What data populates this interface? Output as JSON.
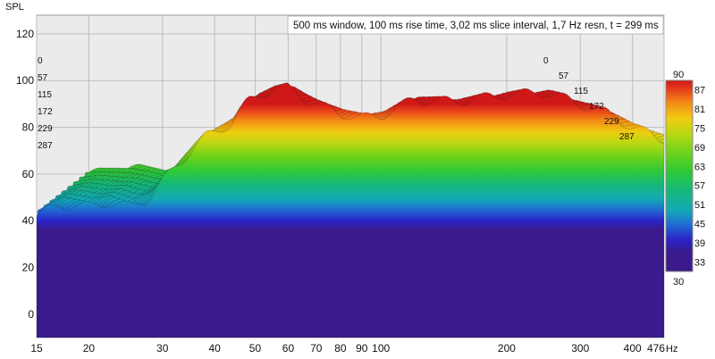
{
  "chart_data": {
    "type": "waterfall",
    "title": "500 ms window, 100 ms rise time, 3,02 ms slice interval, 1,7 Hz resn, t = 299 ms",
    "ylabel": "SPL",
    "xunit": "Hz",
    "xscale": "log",
    "xlim": [
      15,
      476
    ],
    "ylim": [
      -10,
      128
    ],
    "x_ticks": [
      15,
      20,
      30,
      40,
      50,
      60,
      70,
      80,
      90,
      100,
      200,
      300,
      400,
      476
    ],
    "x_tick_labels": [
      "15",
      "20",
      "30",
      "40",
      "50",
      "60",
      "70",
      "80",
      "90",
      "100",
      "200",
      "300",
      "400",
      "476"
    ],
    "y_ticks": [
      0,
      20,
      40,
      60,
      80,
      100,
      120
    ],
    "y_tick_labels": [
      "0",
      "20",
      "40",
      "60",
      "80",
      "100",
      "120"
    ],
    "slice_times_ms": [
      "0",
      "57",
      "115",
      "172",
      "229",
      "287"
    ],
    "colorbar": {
      "min": 30,
      "max": 90,
      "ticks": [
        "87",
        "81",
        "75",
        "69",
        "63",
        "57",
        "51",
        "45",
        "39",
        "33"
      ],
      "top_label": "90",
      "bottom_label": "30"
    },
    "front_slice": {
      "x": [
        15,
        17,
        20,
        22,
        25,
        28,
        30,
        33,
        36,
        38,
        40,
        42,
        44,
        46,
        48,
        50,
        55,
        60,
        65,
        70,
        75,
        80,
        90,
        100,
        120,
        150,
        200,
        250,
        300,
        350,
        400,
        476
      ],
      "y": [
        42,
        47,
        46,
        48,
        46,
        50,
        57,
        65,
        72,
        76,
        78,
        80,
        82,
        87,
        91,
        93,
        96,
        97,
        93,
        90,
        88,
        86,
        84,
        85,
        92,
        91,
        94,
        95,
        90,
        86,
        80,
        75
      ]
    },
    "back_slice": {
      "x": [
        15,
        20,
        25,
        30,
        40,
        50,
        60,
        80,
        100,
        150,
        200,
        300,
        400,
        476
      ],
      "y": [
        35,
        37,
        35,
        40,
        55,
        60,
        58,
        54,
        55,
        52,
        50,
        46,
        42,
        40
      ]
    }
  }
}
